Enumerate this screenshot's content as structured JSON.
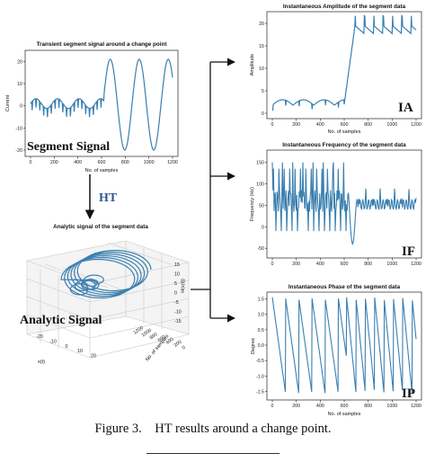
{
  "figure": {
    "panels": {
      "segment": {
        "title": "Transient segment signal around a change point",
        "xlabel": "No. of samples",
        "ylabel": "Current",
        "overlay": "Segment Signal",
        "xticks": [
          "0",
          "200",
          "400",
          "600",
          "800",
          "1000",
          "1200"
        ],
        "yticks": [
          "20",
          "10",
          "0",
          "-10",
          "-20"
        ]
      },
      "analytic": {
        "title": "Analytic signal of the segment data",
        "overlay": "Analytic Signal",
        "xlabel": "x(t)",
        "ylabel": "No. of samples",
        "zlabel": "H(x(t))",
        "xticks": [
          "-20",
          "-10",
          "0",
          "10",
          "20"
        ],
        "yticks": [
          "1200",
          "1000",
          "800",
          "600",
          "400",
          "200",
          "0"
        ],
        "zticks": [
          "15",
          "10",
          "5",
          "0",
          "-5",
          "-10",
          "-15"
        ]
      },
      "ia": {
        "title": "Instantaneous Amplitude of the segment data",
        "xlabel": "No. of samples",
        "ylabel": "Amplitude",
        "tag": "IA",
        "xticks": [
          "0",
          "200",
          "400",
          "600",
          "800",
          "1000",
          "1200"
        ],
        "yticks": [
          "20",
          "15",
          "10",
          "5",
          "0"
        ]
      },
      "if": {
        "title": "Instantaneous Frequency of the segment data",
        "xlabel": "No. of samples",
        "ylabel": "Frequency (Hz)",
        "tag": "IF",
        "xticks": [
          "0",
          "200",
          "400",
          "600",
          "800",
          "1000",
          "1200"
        ],
        "yticks": [
          "150",
          "100",
          "50",
          "0",
          "-50"
        ]
      },
      "ip": {
        "title": "Instantaneous Phase of the segment data",
        "xlabel": "No. of samples",
        "ylabel": "Degree",
        "tag": "IP",
        "xticks": [
          "0",
          "200",
          "400",
          "600",
          "800",
          "1000",
          "1200"
        ],
        "yticks": [
          "1.5",
          "1.0",
          "0.5",
          "0.0",
          "-0.5",
          "-1.0",
          "-1.5"
        ]
      }
    },
    "arrow_label": "HT",
    "caption": {
      "number": "Figure 3.",
      "text": "HT results around a change point."
    },
    "colors": {
      "line": "#3a7fb0",
      "arrow": "#111111",
      "ht_label": "#2f5597"
    }
  }
}
